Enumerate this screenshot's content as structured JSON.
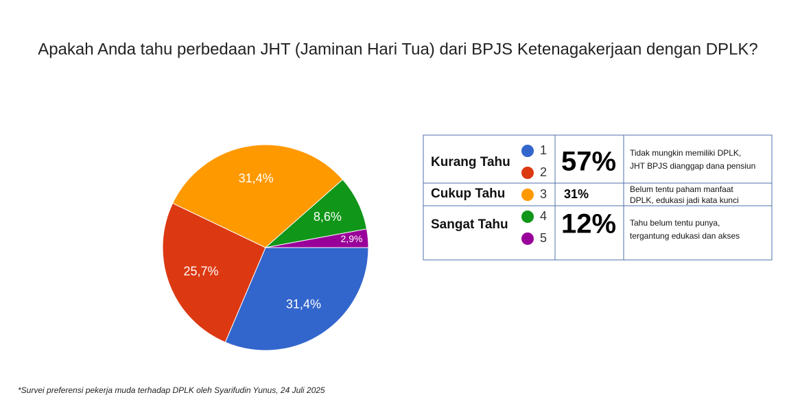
{
  "chart_data": {
    "type": "pie",
    "title": "Apakah Anda tahu perbedaan JHT (Jaminan Hari Tua) dari BPJS Ketenagakerjaan dengan DPLK?",
    "categories": [
      "1",
      "2",
      "3",
      "4",
      "5"
    ],
    "values": [
      31.4,
      25.7,
      31.4,
      8.6,
      2.9
    ],
    "value_labels": [
      "31,4%",
      "25,7%",
      "31,4%",
      "8,6%",
      "2,9%"
    ],
    "colors": [
      "#3366cc",
      "#dc3912",
      "#ff9900",
      "#109618",
      "#990099"
    ]
  },
  "summary_table": {
    "rows": [
      {
        "label": "Kurang Tahu",
        "percent": "57%",
        "note": [
          "Tidak mungkin memiliki DPLK,",
          "JHT BPJS dianggap dana pensiun"
        ]
      },
      {
        "label": "Cukup Tahu",
        "percent": "31%",
        "note": [
          "Belum tentu paham manfaat",
          "DPLK, edukasi jadi kata kunci"
        ]
      },
      {
        "label": "Sangat Tahu",
        "percent": "12%",
        "note": [
          "Tahu belum tentu punya,",
          "tergantung edukasi dan akses"
        ]
      }
    ]
  },
  "footnote": "*Survei preferensi pekerja muda terhadap DPLK oleh Syarifudin Yunus, 24 Juli 2025"
}
